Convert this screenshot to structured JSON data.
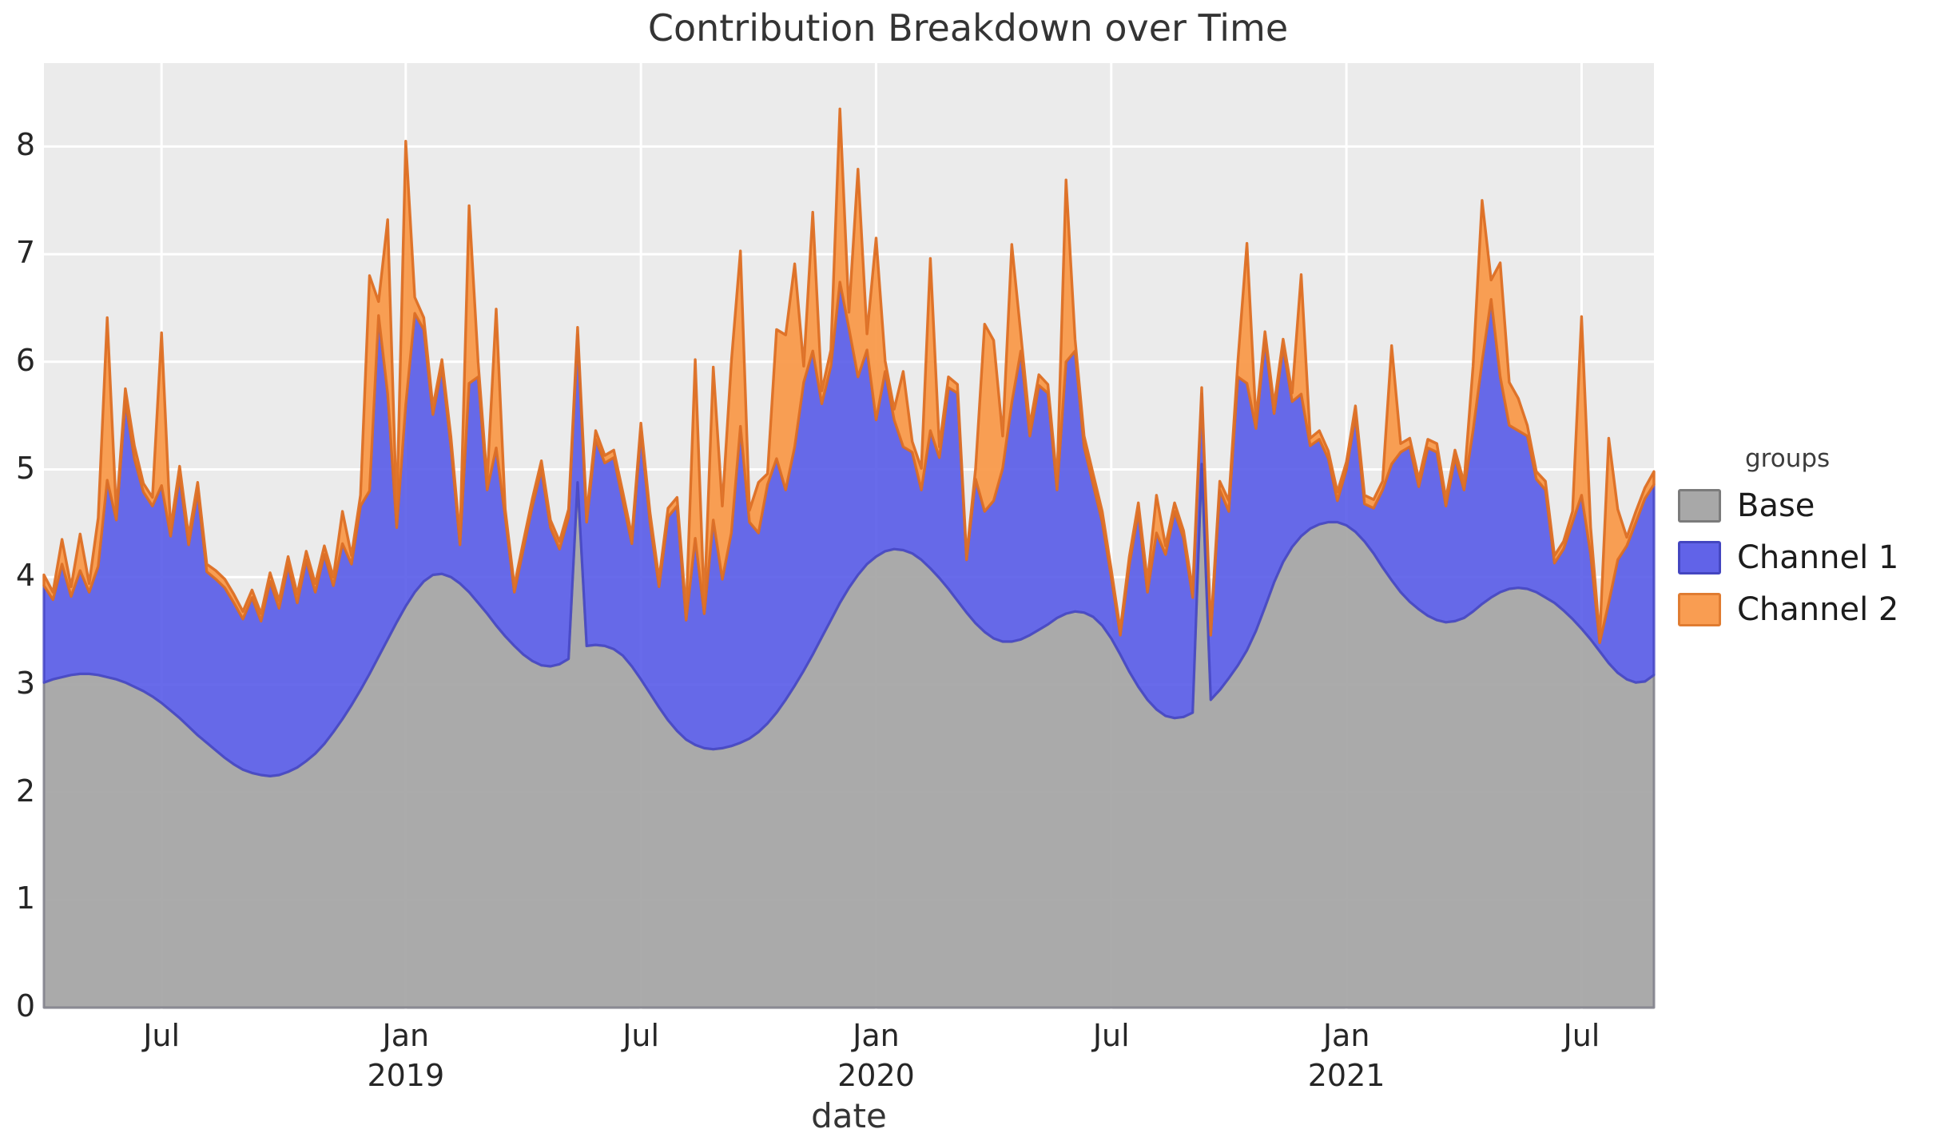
{
  "title": "Contribution Breakdown over Time",
  "x_axis": {
    "label": "date",
    "ticks": [
      {
        "label": "Jul",
        "year": null,
        "week": 13
      },
      {
        "label": "Jan",
        "year": "2019",
        "week": 40
      },
      {
        "label": "Jul",
        "year": null,
        "week": 66
      },
      {
        "label": "Jan",
        "year": "2020",
        "week": 92
      },
      {
        "label": "Jul",
        "year": null,
        "week": 118
      },
      {
        "label": "Jan",
        "year": "2021",
        "week": 144
      },
      {
        "label": "Jul",
        "year": null,
        "week": 170
      }
    ]
  },
  "y_axis": {
    "ticks": [
      0,
      1,
      2,
      3,
      4,
      5,
      6,
      7,
      8
    ],
    "min": 0,
    "max": 8.78
  },
  "legend": {
    "title": "groups",
    "items": [
      {
        "label": "Base",
        "fill": "#a8a8a8",
        "stroke": "#7b7b7b"
      },
      {
        "label": "Channel 1",
        "fill": "#6163e8",
        "stroke": "#4446c0"
      },
      {
        "label": "Channel 2",
        "fill": "#f99d52",
        "stroke": "#e07c31"
      }
    ]
  },
  "chart_data": {
    "type": "area",
    "stacked": true,
    "title": "Contribution Breakdown over Time",
    "xlabel": "date",
    "ylabel": "",
    "x_start_date": "2018-04-01",
    "x_frequency": "weekly",
    "n_points": 179,
    "ylim": [
      0,
      8.78
    ],
    "grid": true,
    "legend_position": "right",
    "panel_background": "#ebebeb",
    "series": [
      {
        "name": "Base",
        "fill": "#a6a6a6",
        "stroke": "#82828c",
        "values": [
          3.02,
          3.05,
          3.07,
          3.09,
          3.1,
          3.1,
          3.09,
          3.07,
          3.05,
          3.02,
          2.98,
          2.94,
          2.89,
          2.83,
          2.76,
          2.69,
          2.61,
          2.53,
          2.46,
          2.39,
          2.32,
          2.26,
          2.21,
          2.18,
          2.16,
          2.15,
          2.16,
          2.19,
          2.23,
          2.29,
          2.36,
          2.45,
          2.56,
          2.68,
          2.81,
          2.95,
          3.1,
          3.26,
          3.42,
          3.58,
          3.73,
          3.86,
          3.96,
          4.02,
          4.03,
          4.0,
          3.94,
          3.86,
          3.76,
          3.66,
          3.55,
          3.45,
          3.36,
          3.28,
          3.22,
          3.18,
          3.17,
          3.19,
          3.24,
          4.88,
          3.36,
          3.37,
          3.36,
          3.33,
          3.27,
          3.17,
          3.05,
          2.92,
          2.79,
          2.67,
          2.57,
          2.49,
          2.44,
          2.41,
          2.4,
          2.41,
          2.43,
          2.46,
          2.5,
          2.56,
          2.64,
          2.74,
          2.86,
          2.99,
          3.13,
          3.28,
          3.44,
          3.6,
          3.76,
          3.9,
          4.02,
          4.12,
          4.19,
          4.24,
          4.26,
          4.25,
          4.22,
          4.16,
          4.08,
          3.99,
          3.89,
          3.78,
          3.67,
          3.57,
          3.49,
          3.43,
          3.4,
          3.4,
          3.42,
          3.46,
          3.51,
          3.56,
          3.62,
          3.66,
          3.68,
          3.67,
          3.63,
          3.55,
          3.43,
          3.28,
          3.12,
          2.98,
          2.86,
          2.77,
          2.71,
          2.69,
          2.7,
          2.74,
          5.05,
          2.86,
          2.95,
          3.06,
          3.18,
          3.32,
          3.5,
          3.72,
          3.95,
          4.14,
          4.28,
          4.38,
          4.45,
          4.49,
          4.51,
          4.51,
          4.48,
          4.42,
          4.33,
          4.22,
          4.09,
          3.97,
          3.86,
          3.77,
          3.7,
          3.64,
          3.6,
          3.58,
          3.59,
          3.62,
          3.68,
          3.75,
          3.81,
          3.86,
          3.89,
          3.9,
          3.89,
          3.86,
          3.81,
          3.76,
          3.69,
          3.61,
          3.52,
          3.42,
          3.31,
          3.2,
          3.11,
          3.05,
          3.02,
          3.03,
          3.09
        ]
      },
      {
        "name": "Channel 1",
        "fill": "#585be8",
        "stroke": "#4547c4",
        "values": [
          0.9,
          0.74,
          1.05,
          0.73,
          0.96,
          0.76,
          1.01,
          1.83,
          1.48,
          2.62,
          2.12,
          1.85,
          1.77,
          2.02,
          1.62,
          2.25,
          1.69,
          2.27,
          1.59,
          1.59,
          1.58,
          1.5,
          1.4,
          1.63,
          1.43,
          1.81,
          1.55,
          1.92,
          1.53,
          1.87,
          1.5,
          1.76,
          1.36,
          1.63,
          1.31,
          1.71,
          1.7,
          3.17,
          2.28,
          0.88,
          1.87,
          2.59,
          2.34,
          1.49,
          1.92,
          1.21,
          0.36,
          1.94,
          2.1,
          1.15,
          1.65,
          1.11,
          0.5,
          0.98,
          1.44,
          1.82,
          1.29,
          1.07,
          1.32,
          1.37,
          1.15,
          1.91,
          1.7,
          1.78,
          1.44,
          1.14,
          2.3,
          1.59,
          1.12,
          1.89,
          2.09,
          1.11,
          1.92,
          1.25,
          2.13,
          1.57,
          1.98,
          2.94,
          2.01,
          1.85,
          2.22,
          2.36,
          1.95,
          2.22,
          2.68,
          2.82,
          2.17,
          2.36,
          2.98,
          2.41,
          1.84,
          1.99,
          1.27,
          1.67,
          1.2,
          0.96,
          0.94,
          0.65,
          1.28,
          1.12,
          1.87,
          1.93,
          0.49,
          1.34,
          1.12,
          1.28,
          1.61,
          2.22,
          2.68,
          1.85,
          2.27,
          2.15,
          1.19,
          2.34,
          2.42,
          1.54,
          1.23,
          0.96,
          0.57,
          0.18,
          0.99,
          1.63,
          1.0,
          1.64,
          1.5,
          1.92,
          1.66,
          1.07,
          0.65,
          0.6,
          1.86,
          1.55,
          2.68,
          2.48,
          1.88,
          2.49,
          1.57,
          2.0,
          1.35,
          1.32,
          0.77,
          0.79,
          0.59,
          0.2,
          0.52,
          1.08,
          0.35,
          0.42,
          0.72,
          1.08,
          1.3,
          1.44,
          1.14,
          1.56,
          1.56,
          1.08,
          1.52,
          1.19,
          1.68,
          2.25,
          2.77,
          2.0,
          1.52,
          1.46,
          1.42,
          1.05,
          1.0,
          0.37,
          0.57,
          0.9,
          1.24,
          0.79,
          0.08,
          0.56,
          1.05,
          1.24,
          1.49,
          1.7,
          1.77
        ]
      },
      {
        "name": "Channel 2",
        "fill": "#f99a4b",
        "stroke": "#dd6f24",
        "values": [
          0.1,
          0.07,
          0.23,
          0.09,
          0.34,
          0.08,
          0.45,
          1.51,
          0.07,
          0.11,
          0.12,
          0.08,
          0.08,
          1.42,
          0.07,
          0.09,
          0.08,
          0.08,
          0.07,
          0.08,
          0.08,
          0.08,
          0.07,
          0.07,
          0.07,
          0.08,
          0.07,
          0.08,
          0.08,
          0.08,
          0.08,
          0.08,
          0.08,
          0.3,
          0.08,
          0.1,
          2.0,
          0.13,
          1.62,
          0.14,
          2.45,
          0.15,
          0.11,
          0.07,
          0.07,
          0.09,
          0.06,
          1.65,
          0.14,
          0.09,
          1.29,
          0.07,
          0.06,
          0.07,
          0.07,
          0.08,
          0.07,
          0.07,
          0.07,
          0.07,
          0.07,
          0.08,
          0.07,
          0.07,
          0.08,
          0.07,
          0.08,
          0.09,
          0.07,
          0.08,
          0.08,
          0.08,
          1.66,
          0.08,
          1.42,
          0.68,
          1.59,
          1.63,
          0.11,
          0.47,
          0.1,
          1.2,
          1.44,
          1.7,
          0.15,
          1.29,
          0.12,
          0.15,
          1.61,
          0.15,
          1.93,
          0.15,
          1.69,
          0.1,
          0.1,
          0.7,
          0.1,
          0.2,
          1.6,
          0.1,
          0.1,
          0.08,
          0.03,
          0.1,
          1.74,
          1.49,
          0.3,
          1.47,
          0.16,
          0.1,
          0.1,
          0.08,
          0.08,
          1.69,
          0.11,
          0.1,
          0.1,
          0.1,
          0.07,
          0.05,
          0.08,
          0.08,
          0.1,
          0.35,
          0.08,
          0.08,
          0.07,
          0.07,
          0.06,
          0.06,
          0.08,
          0.1,
          0.15,
          1.3,
          0.08,
          0.07,
          0.08,
          0.07,
          0.08,
          1.11,
          0.07,
          0.08,
          0.07,
          0.08,
          0.07,
          0.09,
          0.08,
          0.08,
          0.08,
          1.1,
          0.08,
          0.08,
          0.07,
          0.08,
          0.08,
          0.07,
          0.07,
          0.07,
          0.6,
          1.5,
          0.18,
          1.06,
          0.4,
          0.3,
          0.1,
          0.07,
          0.08,
          0.07,
          0.07,
          0.1,
          1.66,
          0.25,
          0.05,
          1.53,
          0.47,
          0.08,
          0.1,
          0.1,
          0.12
        ]
      }
    ]
  }
}
